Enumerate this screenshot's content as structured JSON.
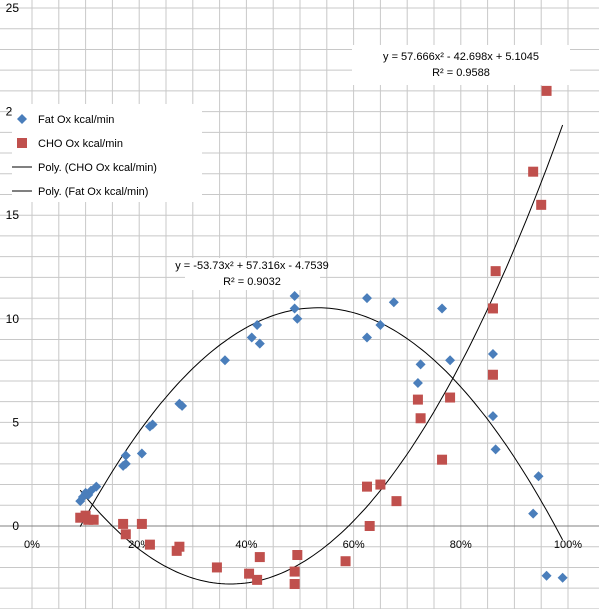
{
  "chart_data": {
    "type": "scatter",
    "xlim": [
      0,
      1
    ],
    "ylim": [
      -4,
      25
    ],
    "grid": true,
    "legend_position": "left",
    "x_ticks": [
      0,
      0.2,
      0.4,
      0.6,
      0.8,
      1.0
    ],
    "x_tick_labels": [
      "0%",
      "20%",
      "40%",
      "60%",
      "80%",
      "100%"
    ],
    "y_ticks": [
      0,
      5,
      10,
      15,
      20,
      25
    ],
    "y_tick_labels": [
      "0",
      "5",
      "10",
      "15",
      "20",
      "25"
    ],
    "series": [
      {
        "name": "Fat Ox kcal/min",
        "marker": "diamond",
        "color": "#4a7ebb",
        "points": [
          [
            0.09,
            1.2
          ],
          [
            0.095,
            1.4
          ],
          [
            0.1,
            1.6
          ],
          [
            0.105,
            1.5
          ],
          [
            0.11,
            1.7
          ],
          [
            0.12,
            1.9
          ],
          [
            0.17,
            2.9
          ],
          [
            0.175,
            3.0
          ],
          [
            0.175,
            3.4
          ],
          [
            0.205,
            3.5
          ],
          [
            0.22,
            4.8
          ],
          [
            0.225,
            4.9
          ],
          [
            0.275,
            5.9
          ],
          [
            0.28,
            5.8
          ],
          [
            0.36,
            8.0
          ],
          [
            0.41,
            9.1
          ],
          [
            0.42,
            9.7
          ],
          [
            0.425,
            8.8
          ],
          [
            0.49,
            11.1
          ],
          [
            0.49,
            10.5
          ],
          [
            0.495,
            10.0
          ],
          [
            0.625,
            9.1
          ],
          [
            0.625,
            11.0
          ],
          [
            0.65,
            9.7
          ],
          [
            0.675,
            10.8
          ],
          [
            0.72,
            6.9
          ],
          [
            0.725,
            7.8
          ],
          [
            0.765,
            10.5
          ],
          [
            0.78,
            8.0
          ],
          [
            0.86,
            8.3
          ],
          [
            0.86,
            5.3
          ],
          [
            0.865,
            3.7
          ],
          [
            0.935,
            0.6
          ],
          [
            0.945,
            2.4
          ],
          [
            0.96,
            -2.4
          ],
          [
            0.99,
            -2.5
          ]
        ]
      },
      {
        "name": "CHO Ox kcal/min",
        "marker": "square",
        "color": "#c0504d",
        "points": [
          [
            0.09,
            0.4
          ],
          [
            0.1,
            0.5
          ],
          [
            0.105,
            0.3
          ],
          [
            0.115,
            0.3
          ],
          [
            0.17,
            0.1
          ],
          [
            0.175,
            -0.4
          ],
          [
            0.205,
            0.1
          ],
          [
            0.22,
            -0.9
          ],
          [
            0.27,
            -1.2
          ],
          [
            0.275,
            -1.0
          ],
          [
            0.345,
            -2.0
          ],
          [
            0.405,
            -2.3
          ],
          [
            0.42,
            -2.6
          ],
          [
            0.425,
            -1.5
          ],
          [
            0.49,
            -2.2
          ],
          [
            0.49,
            -2.8
          ],
          [
            0.495,
            -1.4
          ],
          [
            0.585,
            -1.7
          ],
          [
            0.625,
            1.9
          ],
          [
            0.63,
            0.0
          ],
          [
            0.65,
            2.0
          ],
          [
            0.68,
            1.2
          ],
          [
            0.72,
            6.1
          ],
          [
            0.725,
            5.2
          ],
          [
            0.765,
            3.2
          ],
          [
            0.78,
            6.2
          ],
          [
            0.86,
            7.3
          ],
          [
            0.86,
            10.5
          ],
          [
            0.865,
            12.3
          ],
          [
            0.935,
            17.1
          ],
          [
            0.95,
            15.5
          ],
          [
            0.96,
            21.0
          ],
          [
            0.99,
            21.6
          ]
        ]
      }
    ],
    "trendlines": [
      {
        "name": "Poly. (CHO Ox kcal/min)",
        "a": 57.666,
        "b": -42.698,
        "c": 5.1045,
        "x_range": [
          0.09,
          0.99
        ],
        "equation": "y = 57.666x² - 42.698x + 5.1045",
        "r_squared": "R² = 0.9588",
        "color": "#000000"
      },
      {
        "name": "Poly. (Fat Ox kcal/min)",
        "a": -53.73,
        "b": 57.316,
        "c": -4.7539,
        "x_range": [
          0.09,
          0.99
        ],
        "equation": "y = -53.73x² + 57.316x - 4.7539",
        "r_squared": "R² = 0.9032",
        "color": "#000000"
      }
    ]
  }
}
